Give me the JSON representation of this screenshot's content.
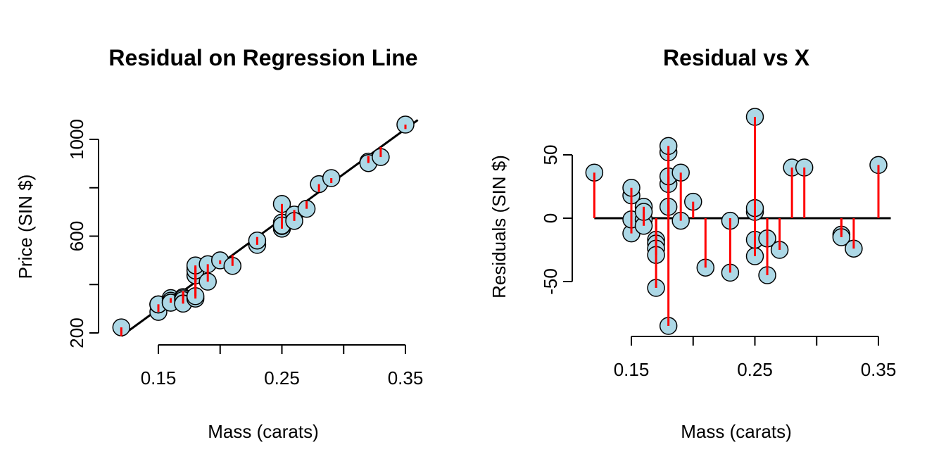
{
  "chart_data": [
    {
      "type": "scatter",
      "title": "Residual on Regression Line",
      "xlabel": "Mass (carats)",
      "ylabel": "Price (SIN $)",
      "xlim": [
        0.12,
        0.35
      ],
      "ylim": [
        200,
        1000
      ],
      "xticks": [
        "0.15",
        "0.25",
        "0.35"
      ],
      "yticks": [
        "200",
        "600",
        "1000"
      ],
      "regression_line": {
        "intercept": -259.6,
        "slope": 3721.0
      },
      "residual_segments": "vertical red segments from fitted line to each point",
      "point_color": "#add8e6",
      "segment_color": "#ff0000",
      "series": [
        {
          "x": [
            0.12,
            0.15,
            0.15,
            0.15,
            0.15,
            0.16,
            0.16,
            0.16,
            0.16,
            0.17,
            0.17,
            0.17,
            0.17,
            0.17,
            0.18,
            0.18,
            0.18,
            0.18,
            0.18,
            0.18,
            0.19,
            0.19,
            0.2,
            0.21,
            0.23,
            0.23,
            0.25,
            0.25,
            0.25,
            0.25,
            0.25,
            0.26,
            0.26,
            0.27,
            0.28,
            0.29,
            0.32,
            0.32,
            0.33,
            0.35
          ],
          "y": [
            223,
            287,
            318,
            318,
            318,
            344,
            333,
            325,
            325,
            348,
            343,
            336,
            322,
            321,
            342,
            352,
            438,
            473,
            458,
            479,
            412,
            484,
            500,
            477,
            564,
            582,
            631,
            642,
            733,
            656,
            644,
            689,
            663,
            713,
            815,
            840,
            908,
            902,
            927,
            1061
          ]
        }
      ]
    },
    {
      "type": "scatter",
      "title": "Residual vs X",
      "xlabel": "Mass (carats)",
      "ylabel": "Residuals (SIN $)",
      "xlim": [
        0.12,
        0.35
      ],
      "ylim": [
        -85,
        80
      ],
      "xticks": [
        "0.15",
        "0.25",
        "0.35"
      ],
      "yticks": [
        "-50",
        "0",
        "50"
      ],
      "zero_line": true,
      "residual_segments": "vertical red segments from zero line to each point",
      "point_color": "#add8e6",
      "segment_color": "#ff0000",
      "series": [
        {
          "x": [
            0.12,
            0.15,
            0.15,
            0.15,
            0.15,
            0.16,
            0.16,
            0.16,
            0.16,
            0.17,
            0.17,
            0.17,
            0.17,
            0.17,
            0.18,
            0.18,
            0.18,
            0.18,
            0.18,
            0.18,
            0.19,
            0.19,
            0.2,
            0.21,
            0.23,
            0.23,
            0.25,
            0.25,
            0.25,
            0.25,
            0.25,
            0.26,
            0.26,
            0.27,
            0.28,
            0.29,
            0.32,
            0.32,
            0.33,
            0.35
          ],
          "y": [
            36,
            -12,
            18,
            24,
            -1,
            9,
            -1,
            -6,
            5,
            -17,
            -20,
            -24,
            -29,
            -55,
            -85,
            9,
            27,
            33,
            52,
            57,
            -2,
            36,
            13,
            -39,
            -43,
            -2,
            -30,
            -17,
            80,
            5,
            8,
            -45,
            -16,
            -25,
            40,
            40,
            -13,
            -15,
            -24,
            42
          ]
        }
      ]
    }
  ]
}
